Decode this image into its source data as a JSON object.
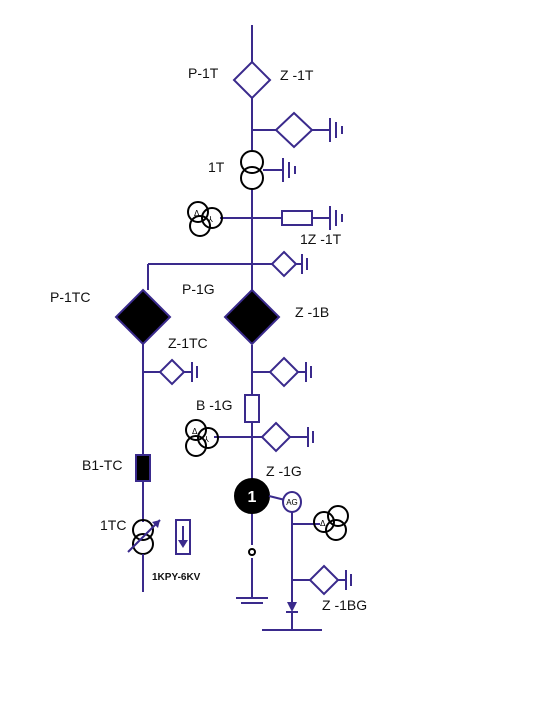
{
  "colors": {
    "line": "#3a2a8c",
    "fill_dark": "#000000",
    "background": "#ffffff"
  },
  "labels": {
    "p1t": "P-1T",
    "z1t": "Z -1T",
    "t1": "1T",
    "z1t_1": "1Z -1T",
    "p1tc": "P-1TC",
    "p1g": "P-1G",
    "z1b": "Z -1B",
    "z1tc": "Z-1TC",
    "b1g": "B -1G",
    "b1tc": "B1-TC",
    "z1g": "Z -1G",
    "gen_num": "1",
    "ag": "AG",
    "tc1": "1TC",
    "kpy": "1KPY-6KV",
    "z1bg": "Z -1BG"
  },
  "icons": {
    "delta": "Δ",
    "wye": "⅄",
    "ground": "ground-symbol",
    "diamond": "relay-diamond",
    "transformer": "two-winding-transformer",
    "generator": "generator-circle"
  }
}
